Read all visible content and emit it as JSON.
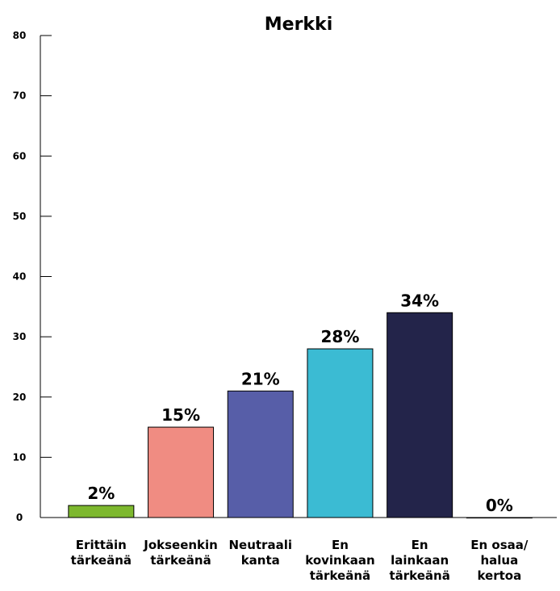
{
  "chart_data": {
    "type": "bar",
    "title": "Merkki",
    "xlabel": "",
    "ylabel": "",
    "ylim": [
      0,
      80
    ],
    "yticks": [
      0,
      10,
      20,
      30,
      40,
      50,
      60,
      70,
      80
    ],
    "categories": [
      [
        "Erittäin",
        "tärkeänä"
      ],
      [
        "Jokseenkin",
        "tärkeänä"
      ],
      [
        "Neutraali",
        "kanta"
      ],
      [
        "En",
        "kovinkaan",
        "tärkeänä"
      ],
      [
        "En",
        "lainkaan",
        "tärkeänä"
      ],
      [
        "En osaa/",
        "halua",
        "kertoa"
      ]
    ],
    "values": [
      2,
      15,
      21,
      28,
      34,
      0
    ],
    "value_labels": [
      "2%",
      "15%",
      "21%",
      "28%",
      "34%",
      "0%"
    ],
    "colors": [
      "#7db82e",
      "#f08c82",
      "#575ea8",
      "#3bbbd3",
      "#23244a",
      "#23244a"
    ],
    "grid": false,
    "legend": "none"
  }
}
